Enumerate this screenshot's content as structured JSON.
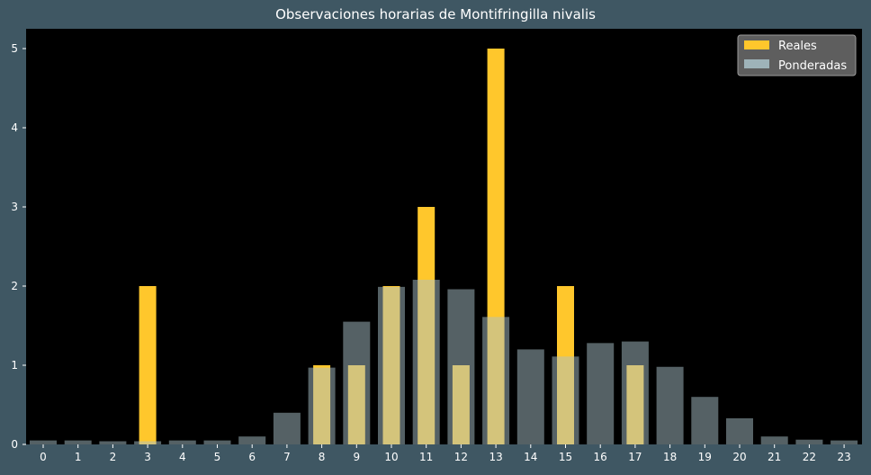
{
  "chart_data": {
    "type": "bar",
    "title": "Observaciones horarias de Montifringilla nivalis",
    "xlabel": "",
    "ylabel": "",
    "categories": [
      "0",
      "1",
      "2",
      "3",
      "4",
      "5",
      "6",
      "7",
      "8",
      "9",
      "10",
      "11",
      "12",
      "13",
      "14",
      "15",
      "16",
      "17",
      "18",
      "19",
      "20",
      "21",
      "22",
      "23"
    ],
    "ylim": [
      0,
      5.25
    ],
    "yticks": [
      0,
      1,
      2,
      3,
      4,
      5
    ],
    "grid": false,
    "legend_position": "top-right",
    "series": [
      {
        "name": "Reales",
        "color": "#ffc72c",
        "values": [
          0,
          0,
          0,
          2,
          0,
          0,
          0,
          0,
          1,
          1,
          2,
          3,
          1,
          5,
          0,
          2,
          0,
          1,
          0,
          0,
          0,
          0,
          0,
          0
        ]
      },
      {
        "name": "Ponderadas",
        "color": "#a9c2c9",
        "opacity": 0.5,
        "values": [
          0.05,
          0.05,
          0.04,
          0.04,
          0.05,
          0.05,
          0.1,
          0.4,
          0.97,
          1.55,
          1.99,
          2.08,
          1.96,
          1.61,
          1.2,
          1.11,
          1.28,
          1.3,
          0.98,
          0.6,
          0.33,
          0.1,
          0.06,
          0.05
        ]
      }
    ]
  }
}
